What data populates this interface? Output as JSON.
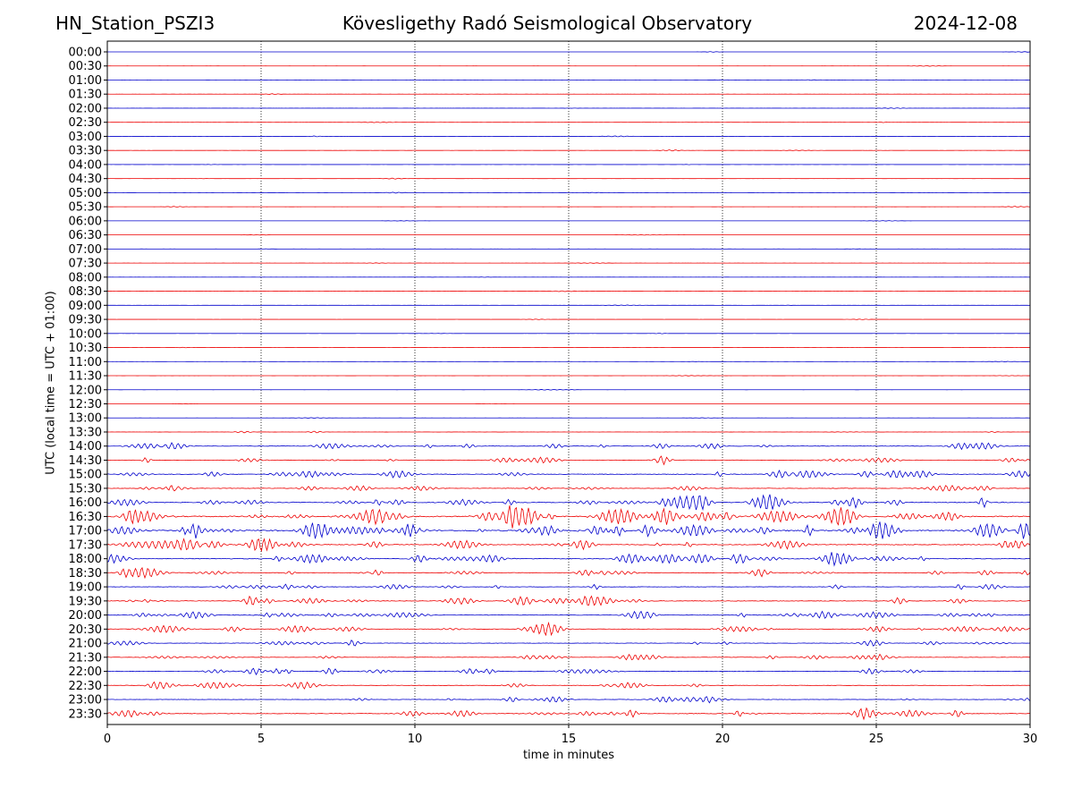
{
  "header": {
    "station": "HN_Station_PSZI3",
    "observatory": "Kövesligethy Radó Seismological Observatory",
    "date": "2024-12-08"
  },
  "chart_data": {
    "type": "line",
    "title": "Kövesligethy Radó Seismological Observatory",
    "xlabel": "time in minutes",
    "ylabel": "UTC (local time = UTC + 01:00)",
    "xlim": [
      0,
      30
    ],
    "x_ticks": [
      0,
      5,
      10,
      15,
      20,
      25,
      30
    ],
    "y_ticks": [
      "00:00",
      "00:30",
      "01:00",
      "01:30",
      "02:00",
      "02:30",
      "03:00",
      "03:30",
      "04:00",
      "04:30",
      "05:00",
      "05:30",
      "06:00",
      "06:30",
      "07:00",
      "07:30",
      "08:00",
      "08:30",
      "09:00",
      "09:30",
      "10:00",
      "10:30",
      "11:00",
      "11:30",
      "12:00",
      "12:30",
      "13:00",
      "13:30",
      "14:00",
      "14:30",
      "15:00",
      "15:30",
      "16:00",
      "16:30",
      "17:00",
      "17:30",
      "18:00",
      "18:30",
      "19:00",
      "19:30",
      "20:00",
      "20:30",
      "21:00",
      "21:30",
      "22:00",
      "22:30",
      "23:00",
      "23:30"
    ],
    "grid": "vertical dotted at every 5 minutes",
    "trace_colors": [
      "#0000cc",
      "#ee0000"
    ],
    "trace_activity": [
      0.04,
      0.04,
      0.04,
      0.05,
      0.04,
      0.06,
      0.05,
      0.06,
      0.06,
      0.05,
      0.05,
      0.05,
      0.04,
      0.05,
      0.05,
      0.05,
      0.04,
      0.04,
      0.04,
      0.04,
      0.04,
      0.04,
      0.05,
      0.04,
      0.04,
      0.04,
      0.05,
      0.1,
      0.35,
      0.3,
      0.4,
      0.35,
      0.55,
      0.75,
      0.85,
      0.55,
      0.5,
      0.4,
      0.3,
      0.45,
      0.45,
      0.35,
      0.3,
      0.3,
      0.35,
      0.3,
      0.3,
      0.4
    ]
  },
  "colors": {
    "trace_even": "#0000cc",
    "trace_odd": "#ee0000",
    "axes": "#000000",
    "grid": "#000000"
  }
}
